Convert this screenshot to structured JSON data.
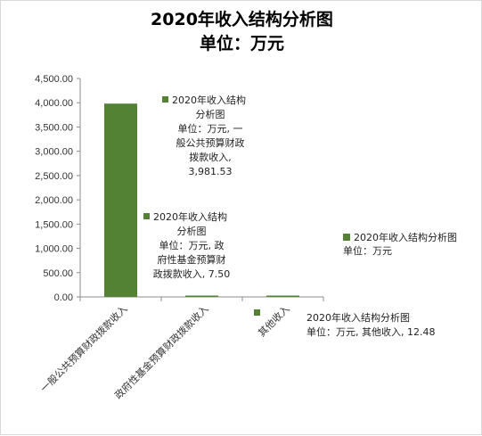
{
  "chart_data": {
    "type": "bar",
    "title": "2020年收入结构分析图",
    "subtitle": "单位：万元",
    "categories": [
      "一般公共预算财政拨款收入",
      "政府性基金预算财政拨款收入",
      "其他收入"
    ],
    "series": [
      {
        "name": "2020年收入结构分析图 单位：万元",
        "values": [
          3981.53,
          7.5,
          12.48
        ],
        "color": "#548235"
      }
    ],
    "y_ticks": [
      "0.00",
      "500.00",
      "1,000.00",
      "1,500.00",
      "2,000.00",
      "2,500.00",
      "3,000.00",
      "3,500.00",
      "4,000.00",
      "4,500.00"
    ],
    "ylim": [
      0,
      4500
    ],
    "xlabel": "",
    "ylabel": "",
    "grid": false,
    "legend_position": "right",
    "data_labels": [
      [
        "2020年收入结构",
        "分析图",
        "单位：万元, 一",
        "般公共预算财政",
        "拨款收入,",
        "3,981.53"
      ],
      [
        "2020年收入结构",
        "分析图",
        "单位：万元, 政",
        "府性基金预算财",
        "政拨款收入, 7.50"
      ],
      [
        "2020年收入结构分析图",
        "单位：万元, 其他收入, 12.48"
      ]
    ],
    "legend": {
      "line1": "2020年收入结构分析图",
      "line2": "单位：万元"
    }
  }
}
